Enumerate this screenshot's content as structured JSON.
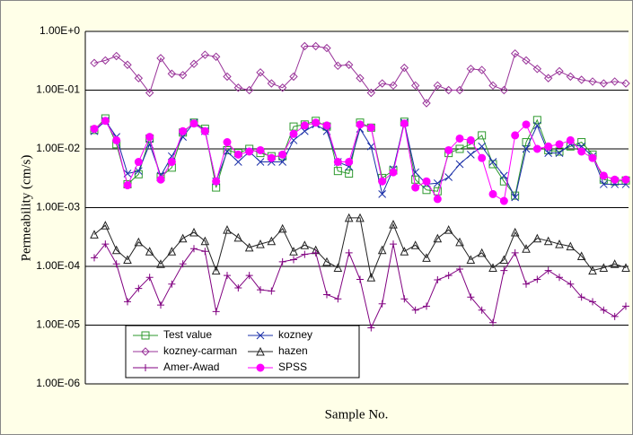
{
  "chart_data": {
    "type": "line",
    "y_label": "Permeability (cm/s)",
    "x_label": "Sample No.",
    "yscale": "log",
    "ylim": [
      1e-06,
      1
    ],
    "yticks": [
      {
        "value": 1e-06,
        "label": "1.00E-06"
      },
      {
        "value": 1e-05,
        "label": "1.00E-05"
      },
      {
        "value": 0.0001,
        "label": "1.00E-04"
      },
      {
        "value": 0.001,
        "label": "1.00E-03"
      },
      {
        "value": 0.01,
        "label": "1.00E-02"
      },
      {
        "value": 0.1,
        "label": "1.00E-01"
      },
      {
        "value": 1,
        "label": "1.00E+0"
      }
    ],
    "grid": true,
    "legend": "lower left",
    "series": [
      {
        "name": "Test value",
        "color": "#2e9a2e",
        "marker": "square",
        "values": [
          0.021,
          0.033,
          0.012,
          0.0025,
          0.0037,
          0.015,
          0.0033,
          0.0048,
          0.019,
          0.028,
          0.022,
          0.0022,
          0.0095,
          0.0085,
          0.01,
          0.0085,
          0.0075,
          0.0075,
          0.024,
          0.026,
          0.03,
          0.024,
          0.0042,
          0.0038,
          0.028,
          0.023,
          0.0032,
          0.0043,
          0.029,
          0.003,
          0.002,
          0.0019,
          0.0085,
          0.01,
          0.012,
          0.017,
          0.0055,
          0.0028,
          0.0016,
          0.013,
          0.031,
          0.0095,
          0.009,
          0.011,
          0.013,
          0.008,
          0.003,
          0.0028,
          0.0029
        ]
      },
      {
        "name": "kozney",
        "color": "#1a2fa8",
        "marker": "x",
        "values": [
          0.02,
          0.03,
          0.016,
          0.0038,
          0.0042,
          0.012,
          0.0035,
          0.0075,
          0.016,
          0.028,
          0.02,
          0.0028,
          0.009,
          0.006,
          0.009,
          0.006,
          0.006,
          0.006,
          0.014,
          0.02,
          0.026,
          0.02,
          0.006,
          0.005,
          0.022,
          0.011,
          0.0017,
          0.0045,
          0.028,
          0.004,
          0.0025,
          0.0026,
          0.0033,
          0.0055,
          0.008,
          0.011,
          0.006,
          0.0035,
          0.0015,
          0.01,
          0.025,
          0.0085,
          0.0085,
          0.012,
          0.011,
          0.0075,
          0.0025,
          0.0025,
          0.0025
        ]
      },
      {
        "name": "kozney-carman",
        "color": "#993399",
        "marker": "diamond",
        "values": [
          0.29,
          0.32,
          0.38,
          0.27,
          0.16,
          0.09,
          0.35,
          0.19,
          0.18,
          0.28,
          0.4,
          0.37,
          0.17,
          0.11,
          0.1,
          0.2,
          0.13,
          0.11,
          0.17,
          0.56,
          0.56,
          0.52,
          0.26,
          0.27,
          0.16,
          0.09,
          0.13,
          0.12,
          0.24,
          0.12,
          0.06,
          0.12,
          0.1,
          0.1,
          0.23,
          0.22,
          0.12,
          0.1,
          0.42,
          0.32,
          0.23,
          0.16,
          0.21,
          0.17,
          0.15,
          0.14,
          0.13,
          0.14,
          0.13
        ]
      },
      {
        "name": "hazen",
        "color": "#222222",
        "marker": "triangle",
        "values": [
          0.00035,
          0.0005,
          0.00019,
          0.00013,
          0.00026,
          0.00018,
          0.00011,
          0.00018,
          0.0003,
          0.00038,
          0.00027,
          8.5e-05,
          0.00042,
          0.00031,
          0.00021,
          0.00024,
          0.00027,
          0.00044,
          0.00018,
          0.00023,
          0.00019,
          0.00012,
          9.5e-05,
          0.00067,
          0.00067,
          6.5e-05,
          0.00019,
          0.00052,
          0.00018,
          0.00023,
          0.00014,
          0.0003,
          0.00042,
          0.00026,
          0.00013,
          0.00017,
          9.5e-05,
          0.00013,
          0.00038,
          0.0002,
          0.0003,
          0.00027,
          0.00024,
          0.00022,
          0.00015,
          8.5e-05,
          9.5e-05,
          0.00011,
          9.5e-05
        ]
      },
      {
        "name": "Amer-Awad",
        "color": "#800080",
        "marker": "plus",
        "values": [
          0.00014,
          0.00024,
          0.00011,
          2.5e-05,
          4.2e-05,
          6.5e-05,
          2.2e-05,
          5e-05,
          0.00011,
          0.0002,
          0.00018,
          1.7e-05,
          7e-05,
          4.3e-05,
          7e-05,
          4e-05,
          3.8e-05,
          0.00012,
          0.00013,
          0.00016,
          0.00017,
          3.3e-05,
          2.8e-05,
          0.00017,
          6e-05,
          9e-06,
          2.3e-05,
          0.00024,
          2.8e-05,
          1.8e-05,
          2.1e-05,
          5.9e-05,
          7e-05,
          9e-05,
          3e-05,
          1.8e-05,
          1.1e-05,
          8.5e-05,
          0.00017,
          5e-05,
          6e-05,
          8.5e-05,
          6.5e-05,
          5e-05,
          3e-05,
          2.5e-05,
          1.8e-05,
          1.4e-05,
          2.1e-05
        ]
      },
      {
        "name": "SPSS",
        "color": "#ff00ff",
        "marker": "circle",
        "values": [
          0.022,
          0.03,
          0.014,
          0.0024,
          0.006,
          0.016,
          0.003,
          0.006,
          0.02,
          0.027,
          0.02,
          0.0028,
          0.013,
          0.008,
          0.009,
          0.0095,
          0.007,
          0.008,
          0.018,
          0.025,
          0.028,
          0.025,
          0.006,
          0.006,
          0.026,
          0.023,
          0.0028,
          0.004,
          0.027,
          0.0022,
          0.0028,
          0.0014,
          0.0095,
          0.015,
          0.014,
          0.007,
          0.0017,
          0.0013,
          0.017,
          0.026,
          0.01,
          0.011,
          0.012,
          0.014,
          0.009,
          0.007,
          0.0035,
          0.003,
          0.003
        ]
      }
    ]
  }
}
